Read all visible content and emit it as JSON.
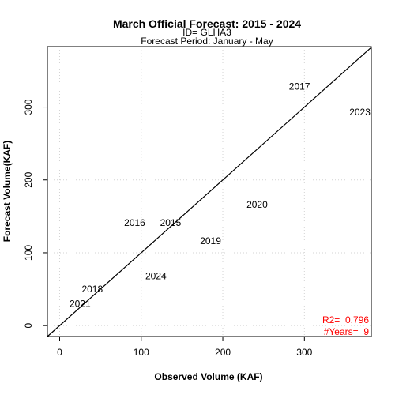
{
  "chart_data": {
    "type": "scatter",
    "title": "March Official Forecast: 2015 - 2024",
    "subtitle_lines": [
      "ID= GLHA3",
      "Forecast Period:  January - May"
    ],
    "xlabel": "Observed Volume (KAF)",
    "ylabel": "Forecast Volume(KAF)",
    "xlim": [
      -15,
      382
    ],
    "ylim": [
      -15,
      383
    ],
    "x_ticks": [
      0,
      100,
      200,
      300
    ],
    "y_ticks": [
      0,
      100,
      200,
      300
    ],
    "grid": true,
    "grid_color": "#d3d3d3",
    "reference_line": "1:1",
    "points": [
      {
        "label": "2015",
        "x": 136,
        "y": 141
      },
      {
        "label": "2016",
        "x": 92,
        "y": 141
      },
      {
        "label": "2017",
        "x": 294,
        "y": 328
      },
      {
        "label": "2018",
        "x": 40,
        "y": 50
      },
      {
        "label": "2019",
        "x": 185,
        "y": 116
      },
      {
        "label": "2020",
        "x": 242,
        "y": 166
      },
      {
        "label": "2021",
        "x": 25,
        "y": 30
      },
      {
        "label": "2023",
        "x": 368,
        "y": 293
      },
      {
        "label": "2024",
        "x": 118,
        "y": 68
      }
    ],
    "stats": {
      "r2_label": "R2=",
      "r2_value": "0.796",
      "years_label": "#Years=",
      "years_value": "9",
      "color": "#ff0000"
    }
  }
}
